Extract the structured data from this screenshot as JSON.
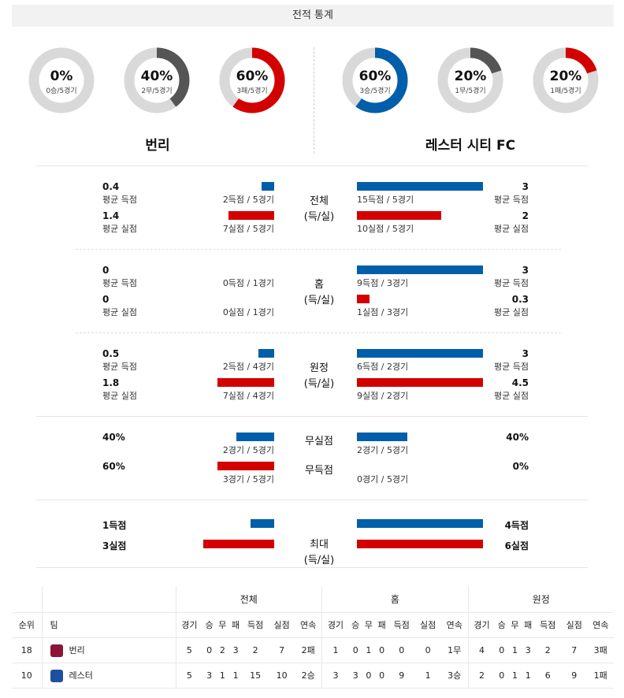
{
  "header": {
    "title": "전적 통계"
  },
  "teams": {
    "home": {
      "name": "번리",
      "donuts": [
        {
          "pct": "0%",
          "sub": "0승/5경기",
          "value": 0,
          "color": "#005eaa"
        },
        {
          "pct": "40%",
          "sub": "2무/5경기",
          "value": 0.4,
          "color": "#555555"
        },
        {
          "pct": "60%",
          "sub": "3패/5경기",
          "value": 0.6,
          "color": "#d30000"
        }
      ]
    },
    "away": {
      "name": "레스터 시티 FC",
      "donuts": [
        {
          "pct": "60%",
          "sub": "3승/5경기",
          "value": 0.6,
          "color": "#005eaa"
        },
        {
          "pct": "20%",
          "sub": "1무/5경기",
          "value": 0.2,
          "color": "#555555"
        },
        {
          "pct": "20%",
          "sub": "1패/5경기",
          "value": 0.2,
          "color": "#d30000"
        }
      ]
    }
  },
  "sections": [
    {
      "label1": "전체",
      "label2": "(득/실)",
      "rows": [
        {
          "l_val": "0.4",
          "l_lbl": "평균 득점",
          "l_cnt": "2득점 / 5경기",
          "l_frac": 0.13,
          "r_val": "3",
          "r_lbl": "평균 득점",
          "r_cnt": "15득점 / 5경기",
          "r_frac": 1.0,
          "color": "blue"
        },
        {
          "l_val": "1.4",
          "l_lbl": "평균 실점",
          "l_cnt": "7실점 / 5경기",
          "l_frac": 0.48,
          "r_val": "2",
          "r_lbl": "평균 실점",
          "r_cnt": "10실점 / 5경기",
          "r_frac": 0.67,
          "color": "red"
        }
      ]
    },
    {
      "label1": "홈",
      "label2": "(득/실)",
      "rows": [
        {
          "l_val": "0",
          "l_lbl": "평균 득점",
          "l_cnt": "0득점 / 1경기",
          "l_frac": 0,
          "r_val": "3",
          "r_lbl": "평균 득점",
          "r_cnt": "9득점 / 3경기",
          "r_frac": 1.0,
          "color": "blue"
        },
        {
          "l_val": "0",
          "l_lbl": "평균 실점",
          "l_cnt": "0실점 / 1경기",
          "l_frac": 0,
          "r_val": "0.3",
          "r_lbl": "평균 실점",
          "r_cnt": "1실점 / 3경기",
          "r_frac": 0.1,
          "color": "red"
        }
      ]
    },
    {
      "label1": "원정",
      "label2": "(득/실)",
      "rows": [
        {
          "l_val": "0.5",
          "l_lbl": "평균 득점",
          "l_cnt": "2득점 / 4경기",
          "l_frac": 0.17,
          "r_val": "3",
          "r_lbl": "평균 득점",
          "r_cnt": "6득점 / 2경기",
          "r_frac": 1.0,
          "color": "blue"
        },
        {
          "l_val": "1.8",
          "l_lbl": "평균 실점",
          "l_cnt": "7실점 / 4경기",
          "l_frac": 0.6,
          "r_val": "4.5",
          "r_lbl": "평균 실점",
          "r_cnt": "9실점 / 2경기",
          "r_frac": 1.0,
          "color": "red"
        }
      ]
    },
    {
      "rows": [
        {
          "mid": "무실점",
          "l_val": "40%",
          "l_cnt": "2경기 / 5경기",
          "l_frac": 0.4,
          "r_val": "40%",
          "r_cnt": "2경기 / 5경기",
          "r_frac": 0.4,
          "color": "blue"
        },
        {
          "mid": "무득점",
          "l_val": "60%",
          "l_cnt": "3경기 / 5경기",
          "l_frac": 0.6,
          "r_val": "0%",
          "r_cnt": "0경기 / 5경기",
          "r_frac": 0,
          "color": "red"
        }
      ]
    },
    {
      "label1": "최대",
      "label2": "(득/실)",
      "rows": [
        {
          "l_val": "1득점",
          "l_frac": 0.25,
          "r_val": "4득점",
          "r_frac": 1.0,
          "color": "blue"
        },
        {
          "l_val": "3실점",
          "l_frac": 0.75,
          "r_val": "6실점",
          "r_frac": 1.0,
          "color": "red"
        }
      ]
    }
  ],
  "standings": {
    "groups": [
      "전체",
      "홈",
      "원정"
    ],
    "rank_header": "순위",
    "team_header": "팀",
    "cols": [
      "경기",
      "승",
      "무",
      "패",
      "득점",
      "실점",
      "연속"
    ],
    "rows": [
      {
        "rank": "18",
        "team": "번리",
        "crest_color": "#8a1538",
        "total": [
          "5",
          "0",
          "2",
          "3",
          "2",
          "7",
          "2패"
        ],
        "home": [
          "1",
          "0",
          "1",
          "0",
          "0",
          "0",
          "1무"
        ],
        "away": [
          "4",
          "0",
          "1",
          "3",
          "2",
          "7",
          "3패"
        ]
      },
      {
        "rank": "10",
        "team": "레스터",
        "crest_color": "#1f4fa0",
        "total": [
          "5",
          "3",
          "1",
          "1",
          "15",
          "10",
          "2승"
        ],
        "home": [
          "3",
          "3",
          "0",
          "0",
          "9",
          "1",
          "3승"
        ],
        "away": [
          "2",
          "0",
          "1",
          "1",
          "6",
          "9",
          "1패"
        ]
      }
    ]
  }
}
